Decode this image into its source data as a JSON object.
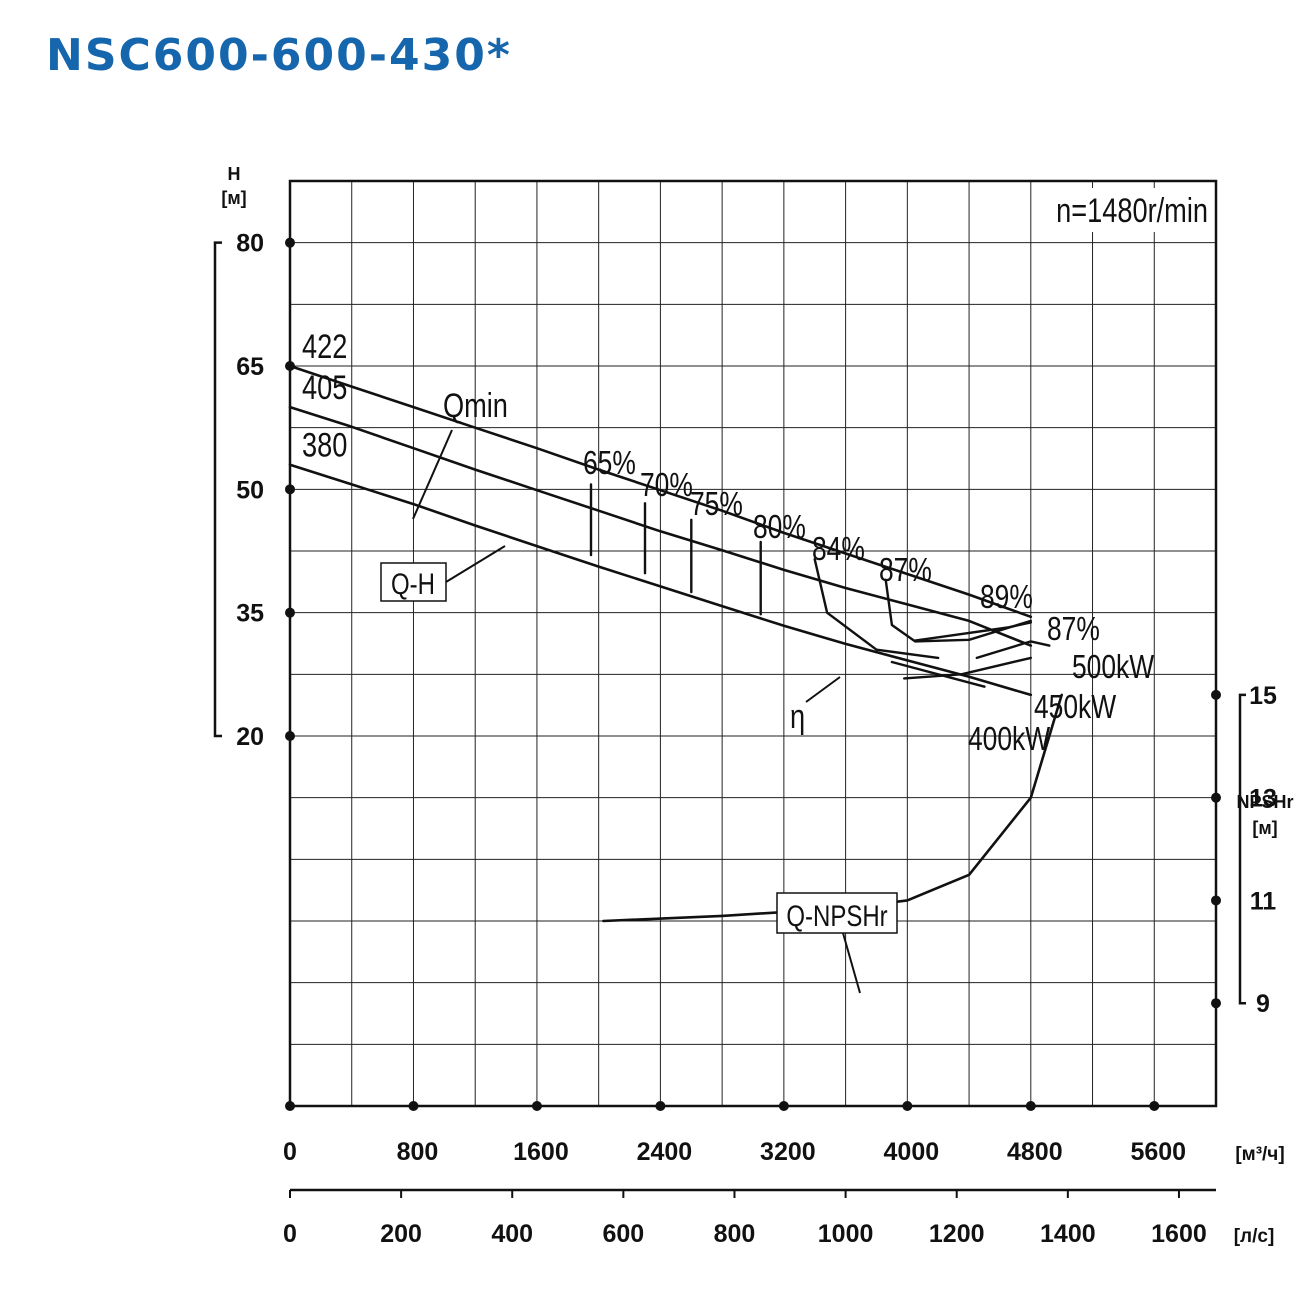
{
  "title": "NSC600-600-430*",
  "chart_data": {
    "type": "line",
    "speed_label": "n=1480r/min",
    "x_axis": {
      "unit": "[м³/ч]",
      "ticks": [
        0,
        800,
        1600,
        2400,
        3200,
        4000,
        4800,
        5600
      ],
      "range": [
        0,
        6000
      ]
    },
    "x2_axis": {
      "unit": "[л/с]",
      "ticks": [
        0,
        200,
        400,
        600,
        800,
        1000,
        1200,
        1400,
        1600
      ]
    },
    "y_axis": {
      "label": "H",
      "unit": "[м]",
      "ticks": [
        20,
        35,
        50,
        65,
        80
      ],
      "range": [
        -25,
        87.5
      ]
    },
    "y2_axis": {
      "label": "NPSHr",
      "unit": "[м]",
      "ticks": [
        9,
        11,
        13,
        15
      ],
      "range": [
        7,
        25
      ]
    },
    "qh_curves": [
      {
        "name": "422",
        "x": [
          0,
          400,
          800,
          1200,
          1600,
          2000,
          2400,
          2800,
          3200,
          3600,
          4000,
          4400,
          4800
        ],
        "y": [
          65.0,
          62.5,
          60.0,
          57.5,
          55.0,
          52.4,
          49.9,
          47.4,
          44.7,
          42.2,
          39.7,
          37.2,
          34.5
        ]
      },
      {
        "name": "405",
        "x": [
          0,
          400,
          800,
          1200,
          1600,
          2000,
          2400,
          2800,
          3200,
          3600,
          4000,
          4400,
          4800
        ],
        "y": [
          60.0,
          57.6,
          55.0,
          52.4,
          49.9,
          47.4,
          44.9,
          42.6,
          40.2,
          38.0,
          36.0,
          34.0,
          31.0
        ]
      },
      {
        "name": "380",
        "x": [
          0,
          400,
          800,
          1200,
          1600,
          2000,
          2400,
          2800,
          3200,
          3600,
          4000,
          4400,
          4800
        ],
        "y": [
          53.0,
          50.6,
          48.2,
          45.6,
          43.1,
          40.6,
          38.2,
          35.8,
          33.4,
          31.2,
          29.2,
          27.2,
          25.0
        ]
      }
    ],
    "efficiency_contours": [
      {
        "label": "65%",
        "x": [
          1950,
          1950
        ],
        "y": [
          50.6,
          42.0
        ]
      },
      {
        "label": "70%",
        "x": [
          2300,
          2300
        ],
        "y": [
          48.3,
          39.8
        ]
      },
      {
        "label": "75%",
        "x": [
          2600,
          2600
        ],
        "y": [
          46.3,
          37.5
        ]
      },
      {
        "label": "80%",
        "x": [
          3050,
          3050
        ],
        "y": [
          43.6,
          34.8
        ]
      },
      {
        "label": "84%",
        "x": [
          3400,
          3480,
          3800,
          4200
        ],
        "y": [
          41.5,
          35.0,
          30.5,
          29.5
        ]
      },
      {
        "label": "87%",
        "x": [
          3860,
          3900,
          4050,
          4400,
          4800
        ],
        "y": [
          39.0,
          33.5,
          31.5,
          31.7,
          34.0
        ]
      },
      {
        "label": "89%",
        "x": [
          4050,
          4650,
          4800
        ],
        "y": [
          31.6,
          33.2,
          33.8
        ]
      }
    ],
    "efficiency_label_extra": "87%",
    "power_labels": [
      "500kW",
      "450kW",
      "400kW"
    ],
    "eta_label": "η",
    "qh_label": "Q-H",
    "qmin_label": "Qmin",
    "npsh_curve": {
      "name": "Q-NPSHr",
      "x": [
        2030,
        2800,
        3600,
        4000,
        4400,
        4800,
        5000
      ],
      "y": [
        10.6,
        10.7,
        10.85,
        11.0,
        11.5,
        13.0,
        15.0
      ]
    }
  }
}
